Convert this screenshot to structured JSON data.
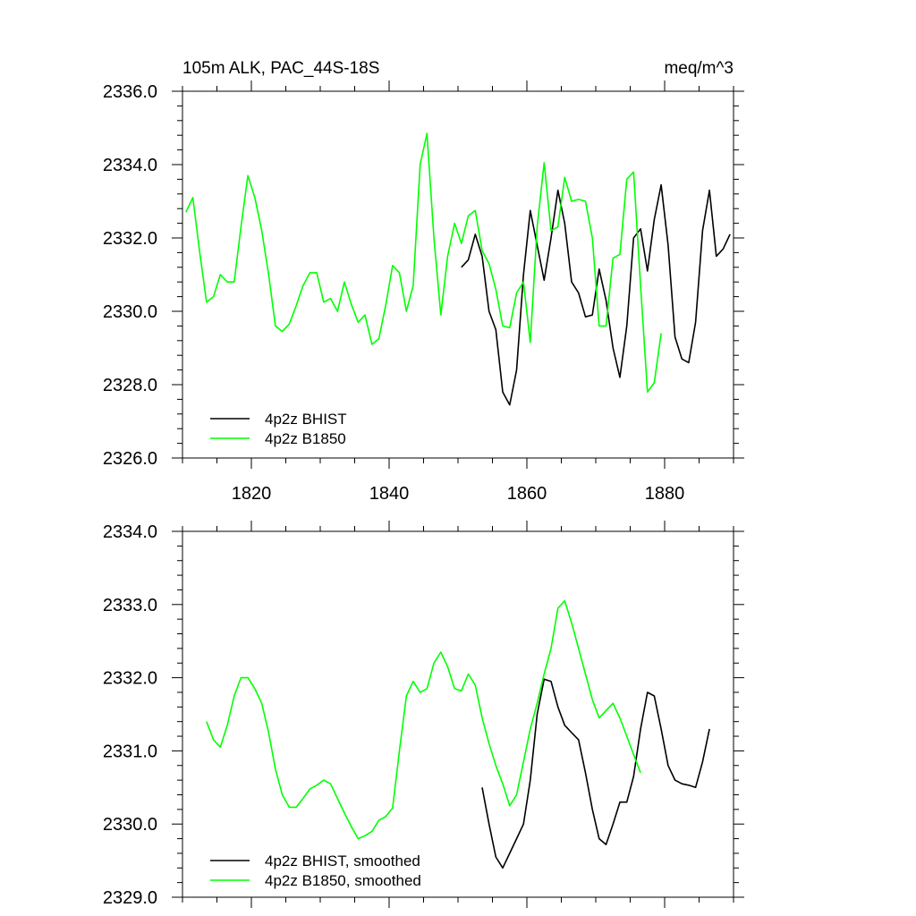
{
  "chart_data": [
    {
      "type": "line",
      "title_left": "105m ALK, PAC_44S-18S",
      "title_right": "meq/m^3",
      "xlabel": "",
      "ylabel": "",
      "xlim": [
        1810,
        1890
      ],
      "ylim": [
        2326.0,
        2336.0
      ],
      "x_ticks": [
        1820,
        1840,
        1860,
        1880
      ],
      "x_tick_labels": [
        "1820",
        "1840",
        "1860",
        "1880"
      ],
      "y_ticks": [
        2326,
        2328,
        2330,
        2332,
        2334,
        2336
      ],
      "y_tick_labels": [
        "2326.0",
        "2328.0",
        "2330.0",
        "2332.0",
        "2334.0",
        "2336.0"
      ],
      "grid": false,
      "legend_position": "bottom-left",
      "series": [
        {
          "name": "4p2z BHIST",
          "color": "#000000",
          "x": [
            1850.5,
            1851.5,
            1852.5,
            1853.5,
            1854.5,
            1855.5,
            1856.5,
            1857.5,
            1858.5,
            1859.5,
            1860.5,
            1861.5,
            1862.5,
            1863.5,
            1864.5,
            1865.5,
            1866.5,
            1867.5,
            1868.5,
            1869.5,
            1870.5,
            1871.5,
            1872.5,
            1873.5,
            1874.5,
            1875.5,
            1876.5,
            1877.5,
            1878.5,
            1879.5,
            1880.5,
            1881.5,
            1882.5,
            1883.5,
            1884.5,
            1885.5,
            1886.5,
            1887.5,
            1888.5,
            1889.5
          ],
          "y": [
            2331.2,
            2331.4,
            2332.1,
            2331.5,
            2330.0,
            2329.5,
            2327.8,
            2327.45,
            2328.4,
            2331.0,
            2332.75,
            2331.8,
            2330.85,
            2332.0,
            2333.3,
            2332.4,
            2330.8,
            2330.5,
            2329.85,
            2329.9,
            2331.15,
            2330.3,
            2329.0,
            2328.2,
            2329.6,
            2332.0,
            2332.25,
            2331.1,
            2332.5,
            2333.45,
            2331.8,
            2329.3,
            2328.7,
            2328.6,
            2329.7,
            2332.2,
            2333.3,
            2331.5,
            2331.7,
            2332.1
          ]
        },
        {
          "name": "4p2z B1850",
          "color": "#00ff00",
          "x": [
            1810.5,
            1811.5,
            1812.5,
            1813.5,
            1814.5,
            1815.5,
            1816.5,
            1817.5,
            1818.5,
            1819.5,
            1820.5,
            1821.5,
            1822.5,
            1823.5,
            1824.5,
            1825.5,
            1826.5,
            1827.5,
            1828.5,
            1829.5,
            1830.5,
            1831.5,
            1832.5,
            1833.5,
            1834.5,
            1835.5,
            1836.5,
            1837.5,
            1838.5,
            1839.5,
            1840.5,
            1841.5,
            1842.5,
            1843.5,
            1844.5,
            1845.5,
            1846.5,
            1847.5,
            1848.5,
            1849.5,
            1850.5,
            1851.5,
            1852.5,
            1853.5,
            1854.5,
            1855.5,
            1856.5,
            1857.5,
            1858.5,
            1859.5,
            1860.5,
            1861.5,
            1862.5,
            1863.5,
            1864.5,
            1865.5,
            1866.5,
            1867.5,
            1868.5,
            1869.5,
            1870.5,
            1871.5,
            1872.5,
            1873.5,
            1874.5,
            1875.5,
            1876.5,
            1877.5,
            1878.5,
            1879.5
          ],
          "y": [
            2332.7,
            2333.1,
            2331.6,
            2330.25,
            2330.4,
            2331.0,
            2330.8,
            2330.8,
            2332.3,
            2333.7,
            2333.1,
            2332.2,
            2331.0,
            2329.6,
            2329.45,
            2329.65,
            2330.15,
            2330.7,
            2331.05,
            2331.05,
            2330.25,
            2330.35,
            2330.0,
            2330.8,
            2330.2,
            2329.7,
            2329.9,
            2329.1,
            2329.25,
            2330.15,
            2331.25,
            2331.05,
            2330.0,
            2330.7,
            2334.0,
            2334.85,
            2332.0,
            2329.9,
            2331.5,
            2332.4,
            2331.85,
            2332.6,
            2332.75,
            2331.65,
            2331.3,
            2330.6,
            2329.6,
            2329.55,
            2330.5,
            2330.8,
            2329.15,
            2332.3,
            2334.05,
            2332.2,
            2332.3,
            2333.65,
            2333.0,
            2333.05,
            2333.0,
            2332.0,
            2329.6,
            2329.6,
            2331.45,
            2331.55,
            2333.6,
            2333.8,
            2330.7,
            2327.8,
            2328.05,
            2329.4
          ]
        }
      ]
    },
    {
      "type": "line",
      "xlabel": "",
      "ylabel": "",
      "xlim": [
        1810,
        1890
      ],
      "ylim": [
        2329.0,
        2334.0
      ],
      "x_ticks": [
        1820,
        1840,
        1860,
        1880
      ],
      "y_ticks": [
        2329,
        2330,
        2331,
        2332,
        2333,
        2334
      ],
      "y_tick_labels": [
        "2329.0",
        "2330.0",
        "2331.0",
        "2332.0",
        "2333.0",
        "2334.0"
      ],
      "grid": false,
      "legend_position": "bottom-left",
      "series": [
        {
          "name": "4p2z BHIST, smoothed",
          "color": "#000000",
          "x": [
            1853.5,
            1854.5,
            1855.5,
            1856.5,
            1857.5,
            1858.5,
            1859.5,
            1860.5,
            1861.5,
            1862.5,
            1863.5,
            1864.5,
            1865.5,
            1866.5,
            1867.5,
            1868.5,
            1869.5,
            1870.5,
            1871.5,
            1872.5,
            1873.5,
            1874.5,
            1875.5,
            1876.5,
            1877.5,
            1878.5,
            1879.5,
            1880.5,
            1881.5,
            1882.5,
            1883.5,
            1884.5,
            1885.5,
            1886.5
          ],
          "y": [
            2330.5,
            2330.0,
            2329.55,
            2329.4,
            2329.6,
            2329.8,
            2330.0,
            2330.6,
            2331.5,
            2331.98,
            2331.95,
            2331.6,
            2331.35,
            2331.25,
            2331.15,
            2330.7,
            2330.2,
            2329.8,
            2329.72,
            2330.0,
            2330.3,
            2330.3,
            2330.65,
            2331.3,
            2331.8,
            2331.75,
            2331.3,
            2330.8,
            2330.6,
            2330.55,
            2330.53,
            2330.5,
            2330.85,
            2331.3
          ]
        },
        {
          "name": "4p2z B1850, smoothed",
          "color": "#00ff00",
          "x": [
            1813.5,
            1814.5,
            1815.5,
            1816.5,
            1817.5,
            1818.5,
            1819.5,
            1820.5,
            1821.5,
            1822.5,
            1823.5,
            1824.5,
            1825.5,
            1826.5,
            1827.5,
            1828.5,
            1829.5,
            1830.5,
            1831.5,
            1832.5,
            1833.5,
            1834.5,
            1835.5,
            1836.5,
            1837.5,
            1838.5,
            1839.5,
            1840.5,
            1841.5,
            1842.5,
            1843.5,
            1844.5,
            1845.5,
            1846.5,
            1847.5,
            1848.5,
            1849.5,
            1850.5,
            1851.5,
            1852.5,
            1853.5,
            1854.5,
            1855.5,
            1856.5,
            1857.5,
            1858.5,
            1859.5,
            1860.5,
            1861.5,
            1862.5,
            1863.5,
            1864.5,
            1865.5,
            1866.5,
            1867.5,
            1868.5,
            1869.5,
            1870.5,
            1871.5,
            1872.5,
            1873.5,
            1874.5,
            1875.5,
            1876.5
          ],
          "y": [
            2331.4,
            2331.15,
            2331.05,
            2331.35,
            2331.75,
            2332.0,
            2332.0,
            2331.85,
            2331.65,
            2331.25,
            2330.75,
            2330.4,
            2330.23,
            2330.23,
            2330.35,
            2330.48,
            2330.53,
            2330.6,
            2330.55,
            2330.35,
            2330.15,
            2329.97,
            2329.8,
            2329.84,
            2329.9,
            2330.05,
            2330.1,
            2330.22,
            2331.0,
            2331.75,
            2331.95,
            2331.8,
            2331.85,
            2332.2,
            2332.35,
            2332.15,
            2331.85,
            2331.82,
            2332.05,
            2331.9,
            2331.45,
            2331.1,
            2330.8,
            2330.55,
            2330.25,
            2330.4,
            2330.85,
            2331.3,
            2331.65,
            2332.05,
            2332.4,
            2332.95,
            2333.05,
            2332.75,
            2332.4,
            2332.05,
            2331.7,
            2331.45,
            2331.55,
            2331.65,
            2331.45,
            2331.2,
            2330.95,
            2330.7
          ]
        }
      ]
    }
  ]
}
